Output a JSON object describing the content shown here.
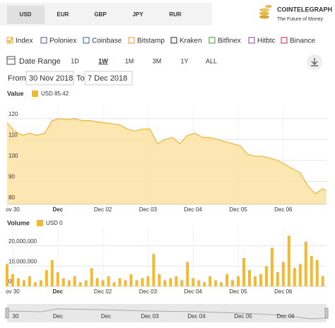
{
  "ui": {
    "tabs": [
      "USD",
      "EUR",
      "GBP",
      "JPY",
      "RUR"
    ],
    "selected_tab": 0,
    "logo": {
      "name": "COINTELEGRAPH",
      "tagline": "The Future of Money"
    },
    "sources": [
      {
        "label": "Index",
        "color": "#f7a21b",
        "checked": true
      },
      {
        "label": "Poloniex",
        "color": "#6a3d9a",
        "checked": false
      },
      {
        "label": "Coinbase",
        "color": "#1f6fa5",
        "checked": false
      },
      {
        "label": "Bitstamp",
        "color": "#f7941d",
        "checked": false
      },
      {
        "label": "Kraken",
        "color": "#222222",
        "checked": false
      },
      {
        "label": "Bitfinex",
        "color": "#3a9b2b",
        "checked": false
      },
      {
        "label": "Hitbtc",
        "color": "#8b3fa0",
        "checked": false
      },
      {
        "label": "Binance",
        "color": "#d9232d",
        "checked": false
      }
    ],
    "date_range_label": "Date Range",
    "ranges": [
      "1D",
      "1W",
      "1M",
      "3M",
      "1Y",
      "ALL"
    ],
    "selected_range": 1,
    "from_label": "From",
    "from_date": "30 Nov 2018",
    "to_label": "To",
    "to_date": "7 Dec 2018",
    "navigator_labels": [
      "30",
      "Dec",
      "Dec",
      "Dec 03",
      "Dec 04",
      "Dec 05",
      "Dec 06"
    ]
  },
  "chart_data": [
    {
      "type": "area",
      "title": "Value",
      "legend_value": 85.42,
      "x": [
        -3,
        1,
        5,
        9,
        13,
        17,
        21,
        25,
        29,
        33,
        37,
        41,
        45,
        49,
        53,
        57,
        61,
        65,
        69,
        73,
        77,
        81,
        85,
        89,
        93,
        97,
        101,
        105,
        109,
        113,
        117,
        121,
        125,
        129,
        133,
        137,
        141,
        145,
        149,
        153,
        157,
        161,
        165,
        167
      ],
      "series": [
        {
          "name": "USD",
          "color": "#f5b930",
          "values": [
            118,
            114,
            112,
            113,
            112,
            113,
            119,
            120,
            119.5,
            120,
            119,
            119,
            118.5,
            118,
            117.5,
            117,
            115,
            114,
            115,
            115,
            108,
            110,
            111,
            108,
            112,
            113,
            111,
            111,
            110,
            109,
            108,
            107,
            103,
            102,
            102,
            101,
            100,
            98,
            96,
            94,
            88,
            84,
            86.5,
            85.42
          ]
        }
      ],
      "xlim": [
        -3,
        167
      ],
      "xticks": [
        {
          "value": 0,
          "label": "ov 30"
        },
        {
          "value": 24,
          "label": "Dec"
        },
        {
          "value": 48,
          "label": "Dec 02"
        },
        {
          "value": 72,
          "label": "Dec 03"
        },
        {
          "value": 96,
          "label": "Dec 04"
        },
        {
          "value": 120,
          "label": "Dec 05"
        },
        {
          "value": 144,
          "label": "Dec 06"
        }
      ],
      "ylim": [
        79,
        126
      ],
      "yticks": [
        80,
        90,
        100,
        110,
        120
      ],
      "grid": true
    },
    {
      "type": "bar",
      "title": "Volume",
      "legend_value": 0,
      "x": [
        -3,
        0,
        3,
        6,
        9,
        12,
        15,
        18,
        21,
        24,
        27,
        30,
        33,
        36,
        39,
        42,
        45,
        48,
        51,
        54,
        57,
        60,
        63,
        66,
        69,
        72,
        75,
        78,
        81,
        84,
        87,
        90,
        93,
        96,
        99,
        102,
        105,
        108,
        111,
        114,
        117,
        120,
        123,
        126,
        129,
        132,
        135,
        138,
        141,
        144,
        147,
        150,
        153,
        156,
        159,
        162,
        165
      ],
      "series": [
        {
          "name": "USD",
          "color": "#f5b930",
          "values": [
            11000000,
            6000000,
            4000000,
            3000000,
            5000000,
            2000000,
            3000000,
            8000000,
            13000000,
            7000000,
            4000000,
            3000000,
            5000000,
            2000000,
            3000000,
            9000000,
            4000000,
            3000000,
            5000000,
            2000000,
            4000000,
            3000000,
            6000000,
            3000000,
            4000000,
            5000000,
            16000000,
            6000000,
            3000000,
            4000000,
            5000000,
            3000000,
            12000000,
            4000000,
            3000000,
            2000000,
            5000000,
            3000000,
            2000000,
            6000000,
            3000000,
            5000000,
            14000000,
            8000000,
            5000000,
            6000000,
            10000000,
            19000000,
            7000000,
            12000000,
            25000000,
            9000000,
            11000000,
            22000000,
            15000000,
            13000000,
            5000000
          ]
        }
      ],
      "xlim": [
        -3,
        167
      ],
      "xticks": [
        {
          "value": 0,
          "label": "ov 30"
        },
        {
          "value": 24,
          "label": "Dec"
        },
        {
          "value": 48,
          "label": "Dec 02"
        },
        {
          "value": 72,
          "label": "Dec 03"
        },
        {
          "value": 96,
          "label": "Dec 04"
        },
        {
          "value": 120,
          "label": "Dec 05"
        },
        {
          "value": 144,
          "label": "Dec 06"
        }
      ],
      "ylim": [
        0,
        29000000
      ],
      "yticks": [
        0,
        {
          "value": 10000000,
          "label": "10,000,000"
        },
        {
          "value": 20000000,
          "label": "20,000,000"
        }
      ],
      "grid": true
    }
  ]
}
